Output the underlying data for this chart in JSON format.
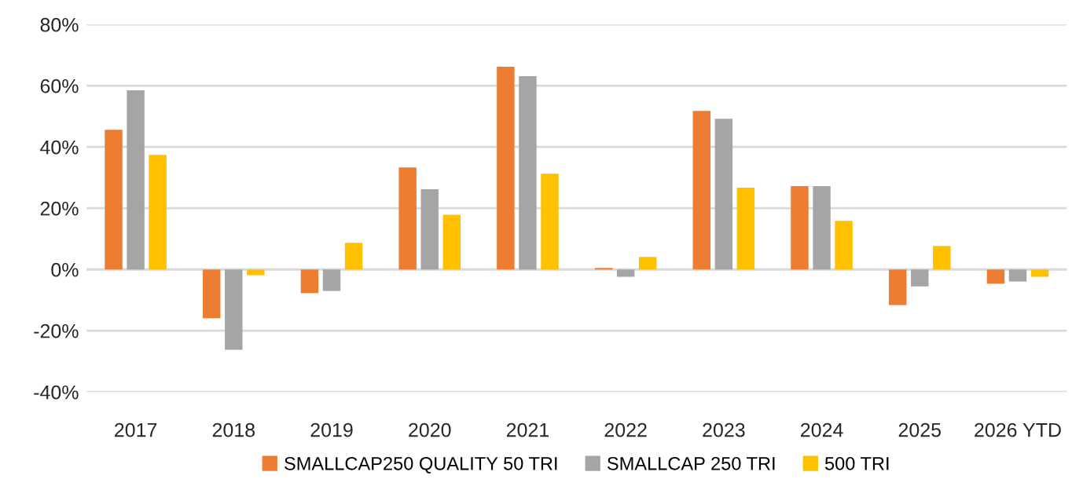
{
  "chart_data": {
    "type": "bar",
    "categories": [
      "2017",
      "2018",
      "2019",
      "2020",
      "2021",
      "2022",
      "2023",
      "2024",
      "2025",
      "2026 YTD"
    ],
    "series": [
      {
        "name": "SMALLCAP250 QUALITY 50 TRI",
        "color": "#ed7d31",
        "values": [
          45.6,
          -15.9,
          -7.7,
          33.3,
          66.2,
          0.5,
          51.8,
          27.2,
          -11.6,
          -4.6
        ]
      },
      {
        "name": "SMALLCAP 250 TRI",
        "color": "#a5a5a5",
        "values": [
          58.5,
          -26.2,
          -7.0,
          26.2,
          63.1,
          -2.4,
          49.2,
          27.2,
          -5.5,
          -3.9
        ]
      },
      {
        "name": "500 TRI",
        "color": "#ffc000",
        "values": [
          37.4,
          -1.9,
          8.7,
          17.9,
          31.3,
          4.1,
          26.7,
          15.9,
          7.7,
          -2.4
        ]
      }
    ],
    "ylim": [
      -40,
      80
    ],
    "yticks": [
      {
        "value": -40,
        "label": "-40%"
      },
      {
        "value": -20,
        "label": "-20%"
      },
      {
        "value": 0,
        "label": "0%"
      },
      {
        "value": 20,
        "label": "20%"
      },
      {
        "value": 40,
        "label": "40%"
      },
      {
        "value": 60,
        "label": "60%"
      },
      {
        "value": 80,
        "label": "80%"
      }
    ],
    "grid": "y",
    "legend": "bottom"
  }
}
